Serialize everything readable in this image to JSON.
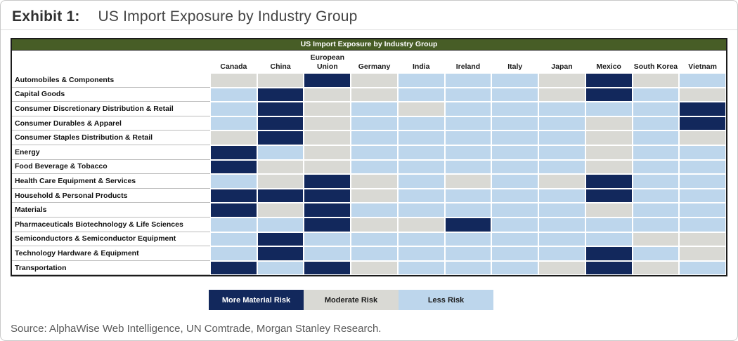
{
  "exhibit": {
    "label": "Exhibit 1:",
    "title": "US Import Exposure by Industry Group"
  },
  "source": "Source: AlphaWise Web Intelligence, UN Comtrade, Morgan Stanley Research.",
  "chart_data": {
    "type": "heatmap",
    "title": "US Import Exposure by Industry Group",
    "columns": [
      "Canada",
      "China",
      "European Union",
      "Germany",
      "India",
      "Ireland",
      "Italy",
      "Japan",
      "Mexico",
      "South Korea",
      "Vietnam"
    ],
    "rows": [
      "Automobiles & Components",
      "Capital Goods",
      "Consumer Discretionary Distribution & Retail",
      "Consumer Durables & Apparel",
      "Consumer Staples Distribution & Retail",
      "Energy",
      "Food Beverage & Tobacco",
      "Health Care Equipment & Services",
      "Household & Personal Products",
      "Materials",
      "Pharmaceuticals Biotechnology & Life Sciences",
      "Semiconductors & Semiconductor Equipment",
      "Technology Hardware & Equipment",
      "Transportation"
    ],
    "levels": {
      "D": "More Material Risk",
      "M": "Moderate Risk",
      "L": "Less Risk"
    },
    "colors": {
      "D": "#12285c",
      "M": "#d9d9d4",
      "L": "#bdd6ec",
      "header_green": "#475d26"
    },
    "values": [
      [
        "M",
        "M",
        "D",
        "M",
        "L",
        "L",
        "L",
        "M",
        "D",
        "M",
        "L"
      ],
      [
        "L",
        "D",
        "M",
        "M",
        "L",
        "L",
        "L",
        "M",
        "D",
        "L",
        "M"
      ],
      [
        "L",
        "D",
        "M",
        "L",
        "M",
        "L",
        "L",
        "L",
        "L",
        "L",
        "D"
      ],
      [
        "L",
        "D",
        "M",
        "L",
        "L",
        "L",
        "L",
        "L",
        "M",
        "L",
        "D"
      ],
      [
        "M",
        "D",
        "M",
        "L",
        "L",
        "L",
        "L",
        "L",
        "M",
        "L",
        "M"
      ],
      [
        "D",
        "L",
        "M",
        "L",
        "L",
        "L",
        "L",
        "L",
        "M",
        "L",
        "L"
      ],
      [
        "D",
        "M",
        "M",
        "L",
        "L",
        "L",
        "L",
        "L",
        "M",
        "L",
        "L"
      ],
      [
        "L",
        "M",
        "D",
        "M",
        "L",
        "M",
        "L",
        "M",
        "D",
        "L",
        "L"
      ],
      [
        "D",
        "D",
        "D",
        "M",
        "L",
        "L",
        "L",
        "L",
        "D",
        "L",
        "L"
      ],
      [
        "D",
        "M",
        "D",
        "L",
        "L",
        "L",
        "L",
        "L",
        "M",
        "L",
        "L"
      ],
      [
        "L",
        "L",
        "D",
        "M",
        "M",
        "D",
        "L",
        "L",
        "L",
        "L",
        "L"
      ],
      [
        "L",
        "D",
        "L",
        "L",
        "L",
        "L",
        "L",
        "L",
        "L",
        "M",
        "M"
      ],
      [
        "L",
        "D",
        "L",
        "L",
        "L",
        "L",
        "L",
        "L",
        "D",
        "L",
        "M"
      ],
      [
        "D",
        "L",
        "D",
        "M",
        "L",
        "L",
        "L",
        "M",
        "D",
        "M",
        "L"
      ]
    ],
    "legend": [
      {
        "code": "D",
        "label": "More Material Risk"
      },
      {
        "code": "M",
        "label": "Moderate Risk"
      },
      {
        "code": "L",
        "label": "Less Risk"
      }
    ]
  }
}
